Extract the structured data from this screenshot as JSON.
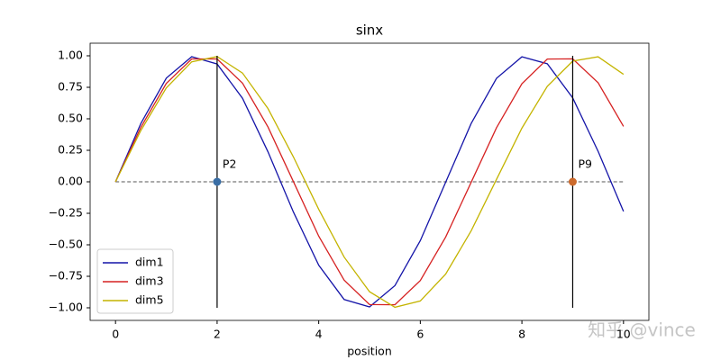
{
  "chart_data": {
    "type": "line",
    "title": "sinx",
    "xlabel": "position",
    "x": [
      0,
      0.5,
      1,
      1.5,
      2,
      2.5,
      3,
      3.5,
      4,
      4.5,
      5,
      5.5,
      6,
      6.5,
      7,
      7.5,
      8,
      8.5,
      9,
      9.5,
      10
    ],
    "series": [
      {
        "name": "dim1",
        "color": "#1414a8",
        "values": [
          0,
          0.464,
          0.823,
          0.993,
          0.935,
          0.663,
          0.239,
          -0.238,
          -0.662,
          -0.934,
          -0.993,
          -0.824,
          -0.467,
          -0.003,
          0.462,
          0.821,
          0.992,
          0.937,
          0.666,
          0.242,
          -0.235
        ]
      },
      {
        "name": "dim3",
        "color": "#d62222",
        "values": [
          0,
          0.433,
          0.781,
          0.975,
          0.975,
          0.783,
          0.436,
          0.003,
          -0.431,
          -0.78,
          -0.974,
          -0.976,
          -0.784,
          -0.438,
          -0.005,
          0.429,
          0.778,
          0.974,
          0.976,
          0.786,
          0.44
        ]
      },
      {
        "name": "dim5",
        "color": "#c4b400",
        "values": [
          0,
          0.408,
          0.745,
          0.952,
          0.994,
          0.863,
          0.582,
          0.199,
          -0.218,
          -0.597,
          -0.872,
          -0.996,
          -0.946,
          -0.732,
          -0.39,
          0.019,
          0.426,
          0.758,
          0.958,
          0.992,
          0.853
        ]
      }
    ],
    "xlim": [
      -0.5,
      10.5
    ],
    "ylim": [
      -1.1,
      1.1
    ],
    "xticks": [
      0,
      2,
      4,
      6,
      8,
      10
    ],
    "yticks": [
      {
        "value": -1,
        "label": "−1.00"
      },
      {
        "value": -0.75,
        "label": "−0.75"
      },
      {
        "value": -0.5,
        "label": "−0.50"
      },
      {
        "value": -0.25,
        "label": "−0.25"
      },
      {
        "value": 0,
        "label": "0.00"
      },
      {
        "value": 0.25,
        "label": "0.25"
      },
      {
        "value": 0.5,
        "label": "0.50"
      },
      {
        "value": 0.75,
        "label": "0.75"
      },
      {
        "value": 1,
        "label": "1.00"
      }
    ],
    "baseline": {
      "y": 0,
      "x": [
        0,
        10
      ],
      "color": "#777777"
    },
    "vline_range": [
      -1,
      1
    ],
    "markers": [
      {
        "label": "P2",
        "x": 2,
        "y": 0,
        "color": "#3a6ea5"
      },
      {
        "label": "P9",
        "x": 9,
        "y": 0,
        "color": "#cc6a2c"
      }
    ],
    "legend": "lower left",
    "watermark": "知乎 @vince"
  }
}
